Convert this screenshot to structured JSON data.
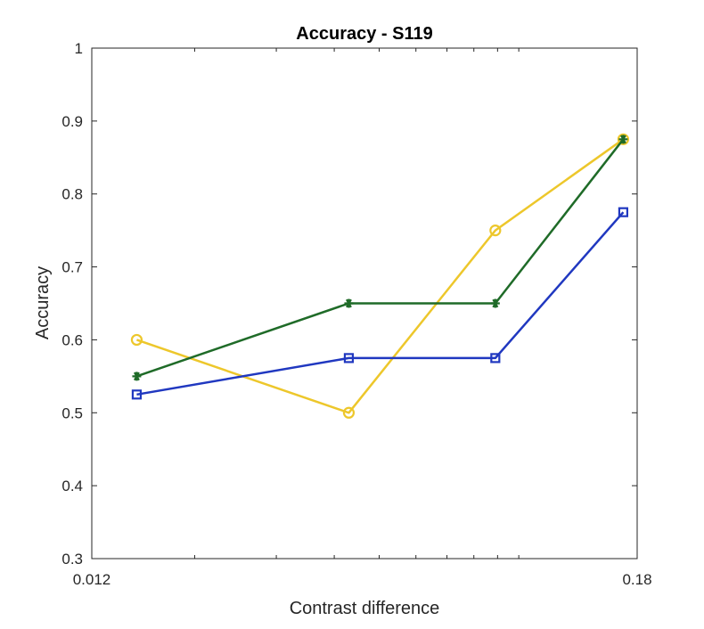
{
  "chart_data": {
    "type": "line",
    "title": "Accuracy - S119",
    "xlabel": "Contrast difference",
    "ylabel": "Accuracy",
    "xscale": "log",
    "xlim": [
      0.012,
      0.18
    ],
    "ylim": [
      0.3,
      1
    ],
    "xticks": [
      0.012,
      0.18
    ],
    "xtick_labels": [
      "0.012",
      "0.18"
    ],
    "yticks": [
      0.3,
      0.4,
      0.5,
      0.6,
      0.7,
      0.8,
      0.9,
      1
    ],
    "ytick_labels": [
      "0.3",
      "0.4",
      "0.5",
      "0.6",
      "0.7",
      "0.8",
      "0.9",
      "1"
    ],
    "grid": false,
    "legend": "none",
    "series": [
      {
        "color": "#EDC72B",
        "marker": "circle",
        "x": [
          0.015,
          0.043,
          0.089,
          0.168
        ],
        "y": [
          0.6,
          0.5,
          0.75,
          0.875
        ]
      },
      {
        "color": "#1F6B28",
        "marker": "asterisk",
        "x": [
          0.015,
          0.043,
          0.089,
          0.168
        ],
        "y": [
          0.55,
          0.65,
          0.65,
          0.875
        ]
      },
      {
        "color": "#2038C0",
        "marker": "square",
        "x": [
          0.015,
          0.043,
          0.089,
          0.168
        ],
        "y": [
          0.525,
          0.575,
          0.575,
          0.775
        ]
      }
    ]
  }
}
